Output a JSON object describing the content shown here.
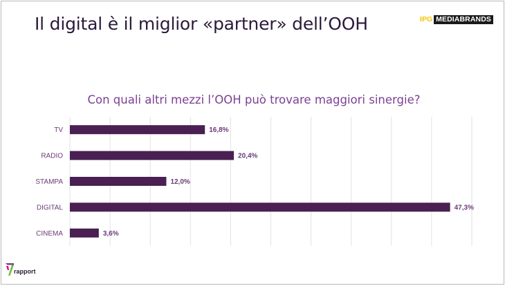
{
  "header": {
    "title": "Il digital è il miglior «partner» dell’OOH",
    "brand_prefix": "IPG",
    "brand_name": "MEDIABRANDS"
  },
  "footer": {
    "logo_text": "rapport"
  },
  "colors": {
    "bar": "#4a1f52",
    "title": "#2a1a3a",
    "subtitle": "#7b3f93",
    "label": "#6b3a78",
    "grid": "#e2e2e2"
  },
  "chart_data": {
    "type": "bar",
    "orientation": "horizontal",
    "title": "Con quali altri mezzi l’OOH può trovare maggiori sinergie?",
    "categories": [
      "TV",
      "RADIO",
      "STAMPA",
      "DIGITAL",
      "CINEMA"
    ],
    "values": [
      16.8,
      20.4,
      12.0,
      47.3,
      3.6
    ],
    "value_labels": [
      "16,8%",
      "20,4%",
      "12,0%",
      "47,3%",
      "3,6%"
    ],
    "unit": "%",
    "xlim": [
      0,
      50
    ],
    "grid": true,
    "legend": "none"
  }
}
